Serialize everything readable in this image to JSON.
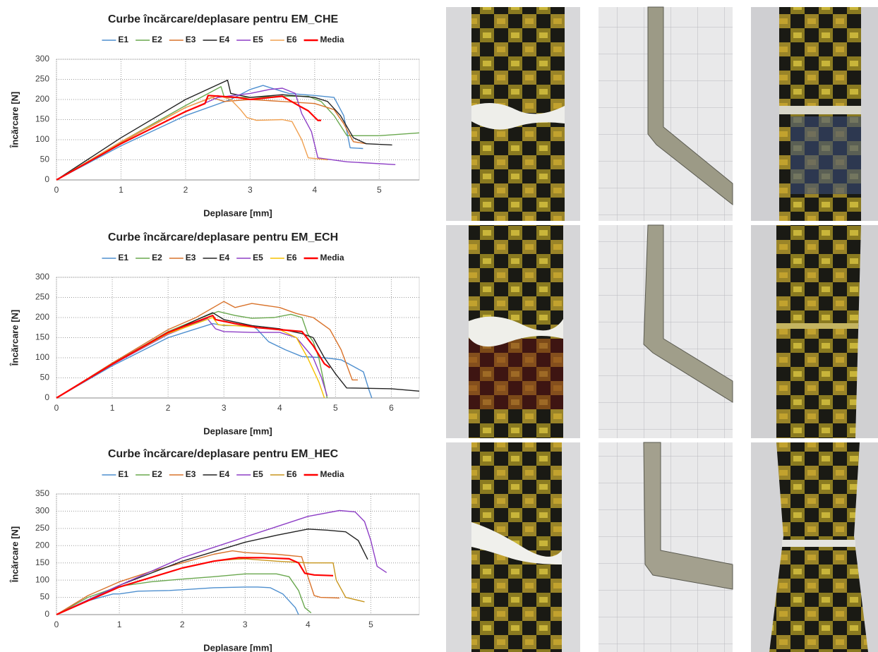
{
  "chart_data": [
    {
      "type": "line",
      "title": "Curbe încărcare/deplasare pentru EM_CHE",
      "xlabel": "Deplasare  [mm]",
      "ylabel": "Încărcare [N]",
      "xlim": [
        0,
        5.62
      ],
      "ylim": [
        0,
        300
      ],
      "xticks": [
        0,
        1,
        2,
        3,
        4,
        5
      ],
      "yticks": [
        0,
        50,
        100,
        150,
        200,
        250,
        300
      ],
      "grid": true,
      "series": [
        {
          "name": "E1",
          "color": "#4e8fcf",
          "x": [
            0,
            1,
            2,
            2.7,
            3,
            3.2,
            3.4,
            3.6,
            4.0,
            4.3,
            4.45,
            4.55,
            4.75
          ],
          "values": [
            0,
            85,
            160,
            200,
            225,
            235,
            225,
            215,
            210,
            205,
            160,
            80,
            78
          ]
        },
        {
          "name": "E2",
          "color": "#6aa84f",
          "x": [
            0,
            1,
            2,
            2.55,
            2.6,
            3,
            3.5,
            3.9,
            4.1,
            4.3,
            4.5,
            5,
            5.62
          ],
          "values": [
            0,
            95,
            185,
            232,
            205,
            205,
            208,
            208,
            195,
            160,
            110,
            110,
            117
          ]
        },
        {
          "name": "E3",
          "color": "#d9732b",
          "x": [
            0,
            1,
            2,
            2.4,
            2.6,
            3,
            3.5,
            4,
            4.3,
            4.45,
            4.6,
            4.8
          ],
          "values": [
            0,
            93,
            180,
            205,
            195,
            200,
            195,
            190,
            175,
            140,
            95,
            90
          ]
        },
        {
          "name": "E4",
          "color": "#222222",
          "x": [
            0,
            1,
            2,
            2.65,
            2.7,
            3,
            3.5,
            4,
            4.2,
            4.4,
            4.6,
            4.8,
            5.2
          ],
          "values": [
            0,
            105,
            200,
            248,
            215,
            205,
            212,
            205,
            195,
            160,
            105,
            90,
            87
          ]
        },
        {
          "name": "E5",
          "color": "#8e3fc6",
          "x": [
            0,
            1,
            2,
            2.5,
            3,
            3.3,
            3.5,
            3.7,
            3.8,
            3.95,
            4.05,
            4.5,
            5.25
          ],
          "values": [
            0,
            90,
            170,
            205,
            215,
            225,
            228,
            215,
            165,
            120,
            55,
            45,
            38
          ]
        },
        {
          "name": "E6",
          "color": "#f0a050",
          "x": [
            0,
            1,
            2,
            2.5,
            2.7,
            2.85,
            2.95,
            3.1,
            3.5,
            3.65,
            3.8,
            3.9,
            4.2
          ],
          "values": [
            0,
            95,
            180,
            210,
            200,
            175,
            155,
            148,
            150,
            145,
            100,
            55,
            50
          ]
        },
        {
          "name": "Media",
          "color": "#ff0000",
          "x": [
            0,
            1,
            2,
            2.3,
            2.35,
            2.8,
            3,
            3.5,
            3.75,
            3.9,
            4.05,
            4.1
          ],
          "values": [
            0,
            90,
            170,
            190,
            210,
            205,
            200,
            208,
            185,
            172,
            148,
            148
          ]
        }
      ]
    },
    {
      "type": "line",
      "title": "Curbe încărcare/deplasare pentru EM_ECH",
      "xlabel": "Deplasare  [mm]",
      "ylabel": "Încărcare [N]",
      "xlim": [
        0,
        6.5
      ],
      "ylim": [
        0,
        300
      ],
      "xticks": [
        0,
        1,
        2,
        3,
        4,
        5,
        6
      ],
      "yticks": [
        0,
        50,
        100,
        150,
        200,
        250,
        300
      ],
      "grid": true,
      "series": [
        {
          "name": "E1",
          "color": "#4e8fcf",
          "x": [
            0,
            1,
            2,
            2.8,
            3,
            3.5,
            3.6,
            3.8,
            4.1,
            4.4,
            4.8,
            5.1,
            5.3,
            5.5,
            5.6,
            5.65
          ],
          "values": [
            0,
            80,
            150,
            185,
            180,
            180,
            170,
            140,
            120,
            103,
            100,
            95,
            80,
            65,
            20,
            0
          ]
        },
        {
          "name": "E2",
          "color": "#6aa84f",
          "x": [
            0,
            1,
            2,
            2.7,
            2.9,
            3.2,
            3.5,
            3.9,
            4.2,
            4.4,
            4.5,
            4.6,
            4.7,
            4.85
          ],
          "values": [
            0,
            85,
            165,
            205,
            215,
            205,
            198,
            200,
            208,
            200,
            160,
            140,
            100,
            0
          ]
        },
        {
          "name": "E3",
          "color": "#d9732b",
          "x": [
            0,
            1,
            2,
            2.5,
            3,
            3.2,
            3.5,
            4,
            4.3,
            4.6,
            4.9,
            5.1,
            5.3,
            5.4
          ],
          "values": [
            0,
            87,
            170,
            200,
            240,
            225,
            235,
            225,
            210,
            200,
            170,
            120,
            45,
            45
          ]
        },
        {
          "name": "E4",
          "color": "#222222",
          "x": [
            0,
            1,
            2,
            2.6,
            2.8,
            3,
            3.5,
            4,
            4.4,
            4.6,
            4.8,
            5,
            5.2,
            6,
            6.5
          ],
          "values": [
            0,
            84,
            162,
            200,
            212,
            195,
            180,
            172,
            160,
            150,
            100,
            60,
            25,
            23,
            17
          ]
        },
        {
          "name": "E5",
          "color": "#8e3fc6",
          "x": [
            0,
            1,
            2,
            2.7,
            2.85,
            3,
            3.5,
            4,
            4.3,
            4.6,
            4.75,
            4.85
          ],
          "values": [
            0,
            83,
            158,
            198,
            172,
            165,
            163,
            163,
            150,
            100,
            50,
            5
          ]
        },
        {
          "name": "E6",
          "color": "#f5c000",
          "x": [
            0,
            1,
            2,
            2.8,
            2.9,
            3.2,
            3.6,
            4,
            4.3,
            4.5,
            4.7,
            4.8
          ],
          "values": [
            0,
            84,
            160,
            200,
            182,
            180,
            175,
            170,
            150,
            100,
            40,
            0
          ]
        },
        {
          "name": "Media",
          "color": "#ff0000",
          "x": [
            0,
            1,
            2,
            2.8,
            2.85,
            3.2,
            3.6,
            4,
            4.4,
            4.6,
            4.8,
            4.9
          ],
          "values": [
            0,
            84,
            163,
            205,
            195,
            185,
            175,
            170,
            165,
            130,
            85,
            75
          ]
        }
      ]
    },
    {
      "type": "line",
      "title": "Curbe încărcare/deplasare pentru EM_HEC",
      "xlabel": "Deplasare  [mm]",
      "ylabel": "Încărcare [N]",
      "xlim": [
        0,
        5.77
      ],
      "ylim": [
        0,
        350
      ],
      "xticks": [
        0,
        1,
        2,
        3,
        4,
        5
      ],
      "yticks": [
        0,
        50,
        100,
        150,
        200,
        250,
        300,
        350
      ],
      "grid": true,
      "series": [
        {
          "name": "E1",
          "color": "#4e8fcf",
          "x": [
            0,
            0.5,
            0.9,
            1,
            1.3,
            1.8,
            2,
            2.5,
            3,
            3.2,
            3.4,
            3.6,
            3.8,
            3.85
          ],
          "values": [
            0,
            40,
            60,
            60,
            68,
            70,
            72,
            78,
            80,
            80,
            78,
            60,
            20,
            0
          ]
        },
        {
          "name": "E2",
          "color": "#6aa84f",
          "x": [
            0,
            0.5,
            1,
            1.5,
            2,
            2.5,
            3,
            3.5,
            3.7,
            3.85,
            3.95,
            4.05
          ],
          "values": [
            0,
            50,
            82,
            95,
            103,
            110,
            118,
            118,
            110,
            70,
            20,
            5
          ]
        },
        {
          "name": "E3",
          "color": "#d9732b",
          "x": [
            0,
            0.5,
            1,
            1.5,
            2,
            2.5,
            2.8,
            3,
            3.5,
            3.9,
            4,
            4.1,
            4.2,
            4.5
          ],
          "values": [
            0,
            55,
            95,
            125,
            150,
            175,
            185,
            180,
            175,
            168,
            110,
            55,
            50,
            48
          ]
        },
        {
          "name": "E4",
          "color": "#222222",
          "x": [
            0,
            1,
            2,
            3,
            3.5,
            4,
            4.3,
            4.6,
            4.8,
            4.95
          ],
          "values": [
            0,
            85,
            155,
            210,
            230,
            248,
            245,
            240,
            215,
            160
          ]
        },
        {
          "name": "E5",
          "color": "#8e3fc6",
          "x": [
            0,
            1,
            2,
            3,
            3.5,
            4,
            4.5,
            4.75,
            4.9,
            5,
            5.1,
            5.25
          ],
          "values": [
            0,
            85,
            165,
            225,
            255,
            285,
            302,
            298,
            270,
            215,
            140,
            122
          ]
        },
        {
          "name": "E6",
          "color": "#c8961e",
          "x": [
            0,
            1,
            2,
            2.5,
            2.8,
            3,
            3.5,
            4,
            4.4,
            4.45,
            4.6,
            4.9
          ],
          "values": [
            0,
            80,
            135,
            155,
            160,
            162,
            155,
            150,
            150,
            100,
            50,
            37
          ]
        },
        {
          "name": "Media",
          "color": "#ff0000",
          "x": [
            0,
            1,
            2,
            2.5,
            2.9,
            3.3,
            3.7,
            3.85,
            3.95,
            4.1,
            4.4
          ],
          "values": [
            0,
            80,
            135,
            155,
            165,
            165,
            162,
            150,
            120,
            115,
            113
          ]
        }
      ]
    }
  ]
}
